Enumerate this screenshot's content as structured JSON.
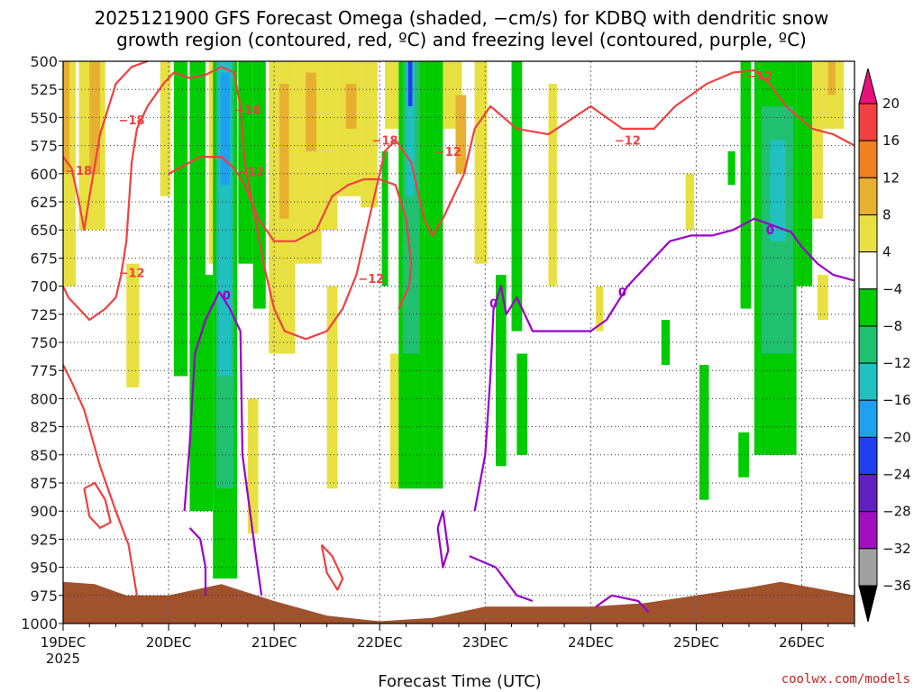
{
  "title_line1": "2025121900 GFS Forecast Omega (shaded, −cm/s) for KDBQ with dendritic snow",
  "title_line2": "growth region (contoured, red, ºC) and freezing level (contoured, purple, ºC)",
  "x_axis_title": "Forecast Time (UTC)",
  "credit": "coolwx.com/models",
  "chart_data": {
    "type": "heatmap",
    "title": "2025121900 GFS Forecast Omega (shaded, −cm/s) for KDBQ with dendritic snow growth region (contoured, red, ºC) and freezing level (contoured, purple, ºC)",
    "xlabel": "Forecast Time (UTC)",
    "ylabel": "",
    "y_levels": [
      "500",
      "525",
      "550",
      "575",
      "600",
      "625",
      "650",
      "675",
      "700",
      "725",
      "750",
      "775",
      "800",
      "825",
      "850",
      "875",
      "900",
      "925",
      "950",
      "975",
      "1000"
    ],
    "ylim": [
      1000,
      500
    ],
    "x_days": [
      {
        "label": "19DEC",
        "sub": "2025",
        "day": 0
      },
      {
        "label": "20DEC",
        "sub": "",
        "day": 1
      },
      {
        "label": "21DEC",
        "sub": "",
        "day": 2
      },
      {
        "label": "22DEC",
        "sub": "",
        "day": 3
      },
      {
        "label": "23DEC",
        "sub": "",
        "day": 4
      },
      {
        "label": "24DEC",
        "sub": "",
        "day": 5
      },
      {
        "label": "25DEC",
        "sub": "",
        "day": 6
      },
      {
        "label": "26DEC",
        "sub": "",
        "day": 7
      }
    ],
    "xlim_days": [
      0,
      7.5
    ],
    "grid": true,
    "colorbar": {
      "ticks": [
        "20",
        "16",
        "12",
        "8",
        "4",
        "−4",
        "−8",
        "−12",
        "−16",
        "−20",
        "−24",
        "−28",
        "−32",
        "−36"
      ],
      "colors": [
        "#e8117a",
        "#f04040",
        "#f08020",
        "#e8b030",
        "#e8e040",
        "#ffffff",
        "#00cc00",
        "#20c070",
        "#20c0c0",
        "#20a0f0",
        "#2040f0",
        "#6020c0",
        "#a010c0",
        "#a0a0a0",
        "#000000"
      ]
    },
    "omega_colors": {
      "pos4": "#e8e040",
      "pos8": "#e8b030",
      "pos12": "#f08020",
      "neg4": "#00cc00",
      "neg8": "#20c070",
      "neg12": "#20c0c0",
      "neg16": "#20a0f0",
      "neg20": "#2040f0",
      "ground": "#a0522d"
    },
    "omega_shading": [
      {
        "d0": 0.0,
        "d1": 0.12,
        "p0": 500,
        "p1": 700,
        "c": "pos4"
      },
      {
        "d0": 0.0,
        "d1": 0.06,
        "p0": 500,
        "p1": 600,
        "c": "pos8"
      },
      {
        "d0": 0.15,
        "d1": 0.4,
        "p0": 500,
        "p1": 650,
        "c": "pos4"
      },
      {
        "d0": 0.25,
        "d1": 0.35,
        "p0": 500,
        "p1": 600,
        "c": "pos8"
      },
      {
        "d0": 0.6,
        "d1": 0.72,
        "p0": 680,
        "p1": 790,
        "c": "pos4"
      },
      {
        "d0": 0.92,
        "d1": 1.02,
        "p0": 500,
        "p1": 620,
        "c": "pos4"
      },
      {
        "d0": 1.05,
        "d1": 1.18,
        "p0": 500,
        "p1": 780,
        "c": "neg4"
      },
      {
        "d0": 1.2,
        "d1": 1.35,
        "p0": 500,
        "p1": 900,
        "c": "neg4"
      },
      {
        "d0": 1.38,
        "d1": 1.5,
        "p0": 500,
        "p1": 680,
        "c": "pos4"
      },
      {
        "d0": 1.3,
        "d1": 1.42,
        "p0": 690,
        "p1": 900,
        "c": "neg4"
      },
      {
        "d0": 1.42,
        "d1": 1.65,
        "p0": 500,
        "p1": 960,
        "c": "neg4"
      },
      {
        "d0": 1.45,
        "d1": 1.62,
        "p0": 500,
        "p1": 880,
        "c": "neg8"
      },
      {
        "d0": 1.47,
        "d1": 1.6,
        "p0": 500,
        "p1": 780,
        "c": "neg12"
      },
      {
        "d0": 1.49,
        "d1": 1.58,
        "p0": 510,
        "p1": 610,
        "c": "neg16"
      },
      {
        "d0": 1.66,
        "d1": 1.8,
        "p0": 500,
        "p1": 680,
        "c": "neg4"
      },
      {
        "d0": 1.8,
        "d1": 1.92,
        "p0": 500,
        "p1": 720,
        "c": "neg4"
      },
      {
        "d0": 1.75,
        "d1": 1.85,
        "p0": 800,
        "p1": 920,
        "c": "pos4"
      },
      {
        "d0": 1.95,
        "d1": 2.2,
        "p0": 500,
        "p1": 760,
        "c": "pos4"
      },
      {
        "d0": 2.05,
        "d1": 2.14,
        "p0": 520,
        "p1": 640,
        "c": "pos8"
      },
      {
        "d0": 2.2,
        "d1": 2.45,
        "p0": 500,
        "p1": 680,
        "c": "pos4"
      },
      {
        "d0": 2.3,
        "d1": 2.4,
        "p0": 510,
        "p1": 580,
        "c": "pos8"
      },
      {
        "d0": 2.45,
        "d1": 2.6,
        "p0": 500,
        "p1": 650,
        "c": "pos4"
      },
      {
        "d0": 2.5,
        "d1": 2.6,
        "p0": 700,
        "p1": 880,
        "c": "pos4"
      },
      {
        "d0": 2.6,
        "d1": 2.82,
        "p0": 500,
        "p1": 620,
        "c": "pos4"
      },
      {
        "d0": 2.68,
        "d1": 2.78,
        "p0": 520,
        "p1": 560,
        "c": "pos8"
      },
      {
        "d0": 2.82,
        "d1": 2.98,
        "p0": 500,
        "p1": 630,
        "c": "pos4"
      },
      {
        "d0": 3.02,
        "d1": 3.08,
        "p0": 580,
        "p1": 700,
        "c": "neg4"
      },
      {
        "d0": 3.05,
        "d1": 3.18,
        "p0": 500,
        "p1": 560,
        "c": "pos4"
      },
      {
        "d0": 3.1,
        "d1": 3.2,
        "p0": 760,
        "p1": 880,
        "c": "pos4"
      },
      {
        "d0": 3.18,
        "d1": 3.42,
        "p0": 500,
        "p1": 880,
        "c": "neg4"
      },
      {
        "d0": 3.22,
        "d1": 3.38,
        "p0": 500,
        "p1": 760,
        "c": "neg8"
      },
      {
        "d0": 3.25,
        "d1": 3.33,
        "p0": 500,
        "p1": 620,
        "c": "neg12"
      },
      {
        "d0": 3.27,
        "d1": 3.31,
        "p0": 500,
        "p1": 540,
        "c": "neg20"
      },
      {
        "d0": 3.42,
        "d1": 3.6,
        "p0": 500,
        "p1": 880,
        "c": "neg4"
      },
      {
        "d0": 3.6,
        "d1": 3.78,
        "p0": 500,
        "p1": 560,
        "c": "pos4"
      },
      {
        "d0": 3.72,
        "d1": 3.82,
        "p0": 530,
        "p1": 600,
        "c": "pos8"
      },
      {
        "d0": 3.9,
        "d1": 4.02,
        "p0": 500,
        "p1": 680,
        "c": "pos4"
      },
      {
        "d0": 4.1,
        "d1": 4.2,
        "p0": 690,
        "p1": 860,
        "c": "neg4"
      },
      {
        "d0": 4.25,
        "d1": 4.35,
        "p0": 500,
        "p1": 740,
        "c": "neg4"
      },
      {
        "d0": 4.3,
        "d1": 4.4,
        "p0": 760,
        "p1": 850,
        "c": "neg4"
      },
      {
        "d0": 4.6,
        "d1": 4.68,
        "p0": 520,
        "p1": 700,
        "c": "pos4"
      },
      {
        "d0": 5.05,
        "d1": 5.12,
        "p0": 700,
        "p1": 740,
        "c": "pos4"
      },
      {
        "d0": 5.67,
        "d1": 5.75,
        "p0": 730,
        "p1": 770,
        "c": "neg4"
      },
      {
        "d0": 5.9,
        "d1": 5.98,
        "p0": 600,
        "p1": 650,
        "c": "pos4"
      },
      {
        "d0": 6.03,
        "d1": 6.12,
        "p0": 770,
        "p1": 890,
        "c": "neg4"
      },
      {
        "d0": 6.3,
        "d1": 6.37,
        "p0": 580,
        "p1": 610,
        "c": "neg4"
      },
      {
        "d0": 6.4,
        "d1": 6.5,
        "p0": 830,
        "p1": 870,
        "c": "neg4"
      },
      {
        "d0": 6.42,
        "d1": 6.52,
        "p0": 500,
        "p1": 720,
        "c": "neg4"
      },
      {
        "d0": 6.55,
        "d1": 6.95,
        "p0": 500,
        "p1": 850,
        "c": "neg4"
      },
      {
        "d0": 6.62,
        "d1": 6.92,
        "p0": 540,
        "p1": 760,
        "c": "neg8"
      },
      {
        "d0": 6.7,
        "d1": 6.85,
        "p0": 570,
        "p1": 660,
        "c": "neg12"
      },
      {
        "d0": 6.95,
        "d1": 7.1,
        "p0": 500,
        "p1": 700,
        "c": "neg4"
      },
      {
        "d0": 7.1,
        "d1": 7.2,
        "p0": 500,
        "p1": 640,
        "c": "pos4"
      },
      {
        "d0": 7.15,
        "d1": 7.25,
        "p0": 690,
        "p1": 730,
        "c": "pos4"
      },
      {
        "d0": 7.2,
        "d1": 7.4,
        "p0": 500,
        "p1": 560,
        "c": "pos4"
      },
      {
        "d0": 7.25,
        "d1": 7.32,
        "p0": 500,
        "p1": 530,
        "c": "pos8"
      }
    ],
    "snow_growth_region": {
      "color": "#f04040",
      "lines": [
        [
          [
            0,
            585
          ],
          [
            0.08,
            595
          ],
          [
            0.15,
            625
          ],
          [
            0.2,
            650
          ],
          [
            0.25,
            620
          ],
          [
            0.35,
            565
          ],
          [
            0.5,
            520
          ],
          [
            0.65,
            505
          ],
          [
            0.8,
            500
          ]
        ],
        [
          [
            0,
            700
          ],
          [
            0.05,
            710
          ],
          [
            0.15,
            720
          ],
          [
            0.25,
            730
          ],
          [
            0.4,
            720
          ],
          [
            0.5,
            710
          ],
          [
            0.55,
            690
          ],
          [
            0.6,
            660
          ],
          [
            0.65,
            590
          ],
          [
            0.7,
            560
          ],
          [
            0.8,
            540
          ],
          [
            0.95,
            520
          ],
          [
            1.05,
            510
          ],
          [
            1.2,
            515
          ],
          [
            1.35,
            512
          ],
          [
            1.5,
            505
          ],
          [
            1.62,
            510
          ],
          [
            1.68,
            540
          ],
          [
            1.72,
            590
          ],
          [
            1.8,
            630
          ],
          [
            1.9,
            680
          ],
          [
            2.0,
            720
          ],
          [
            2.1,
            740
          ],
          [
            2.3,
            747
          ],
          [
            2.5,
            740
          ],
          [
            2.65,
            720
          ],
          [
            2.78,
            690
          ],
          [
            2.9,
            640
          ],
          [
            3.0,
            600
          ],
          [
            3.05,
            580
          ],
          [
            3.15,
            570
          ],
          [
            3.3,
            590
          ],
          [
            3.42,
            640
          ],
          [
            3.5,
            655
          ],
          [
            3.6,
            640
          ],
          [
            3.8,
            600
          ],
          [
            3.9,
            560
          ],
          [
            4.05,
            540
          ],
          [
            4.3,
            560
          ],
          [
            4.6,
            565
          ],
          [
            5.0,
            540
          ],
          [
            5.3,
            560
          ],
          [
            5.6,
            560
          ],
          [
            5.8,
            540
          ],
          [
            6.1,
            520
          ],
          [
            6.35,
            510
          ],
          [
            6.55,
            508
          ],
          [
            6.7,
            520
          ],
          [
            6.85,
            540
          ],
          [
            7.1,
            560
          ],
          [
            7.3,
            565
          ],
          [
            7.5,
            575
          ]
        ],
        [
          [
            1.0,
            600
          ],
          [
            1.1,
            595
          ],
          [
            1.3,
            585
          ],
          [
            1.5,
            585
          ],
          [
            1.62,
            595
          ],
          [
            1.72,
            610
          ],
          [
            1.85,
            640
          ],
          [
            2.0,
            660
          ],
          [
            2.2,
            660
          ],
          [
            2.4,
            650
          ],
          [
            2.55,
            620
          ],
          [
            2.7,
            610
          ],
          [
            2.85,
            605
          ],
          [
            3.0,
            605
          ],
          [
            3.15,
            610
          ],
          [
            3.25,
            640
          ],
          [
            3.3,
            680
          ],
          [
            3.28,
            700
          ],
          [
            3.18,
            720
          ]
        ],
        [
          [
            0,
            770
          ],
          [
            0.08,
            785
          ],
          [
            0.2,
            810
          ],
          [
            0.35,
            860
          ],
          [
            0.5,
            900
          ],
          [
            0.62,
            930
          ],
          [
            0.7,
            975
          ]
        ],
        [
          [
            0.2,
            880
          ],
          [
            0.3,
            875
          ],
          [
            0.4,
            890
          ],
          [
            0.45,
            910
          ],
          [
            0.35,
            915
          ],
          [
            0.25,
            905
          ],
          [
            0.2,
            880
          ]
        ],
        [
          [
            2.45,
            930
          ],
          [
            2.55,
            940
          ],
          [
            2.65,
            960
          ],
          [
            2.6,
            970
          ],
          [
            2.5,
            955
          ],
          [
            2.45,
            930
          ]
        ]
      ],
      "labels": [
        {
          "text": "−18",
          "d": 0.15,
          "p": 597
        },
        {
          "text": "−18",
          "d": 0.65,
          "p": 552
        },
        {
          "text": "−12",
          "d": 0.65,
          "p": 688
        },
        {
          "text": "−18",
          "d": 1.75,
          "p": 543
        },
        {
          "text": "−12",
          "d": 1.78,
          "p": 598
        },
        {
          "text": "−18",
          "d": 3.05,
          "p": 570
        },
        {
          "text": "−12",
          "d": 2.92,
          "p": 693
        },
        {
          "text": "−12",
          "d": 3.65,
          "p": 580
        },
        {
          "text": "−12",
          "d": 5.35,
          "p": 570
        },
        {
          "text": "−12",
          "d": 6.6,
          "p": 513
        }
      ]
    },
    "freezing_level": {
      "color": "#9900cc",
      "lines": [
        [
          [
            1.15,
            900
          ],
          [
            1.2,
            840
          ],
          [
            1.25,
            760
          ],
          [
            1.35,
            730
          ],
          [
            1.48,
            705
          ],
          [
            1.58,
            720
          ],
          [
            1.68,
            740
          ],
          [
            1.7,
            850
          ],
          [
            1.82,
            935
          ],
          [
            1.88,
            975
          ]
        ],
        [
          [
            1.2,
            915
          ],
          [
            1.3,
            925
          ],
          [
            1.35,
            950
          ],
          [
            1.35,
            975
          ]
        ],
        [
          [
            3.9,
            900
          ],
          [
            4.0,
            850
          ],
          [
            4.05,
            780
          ],
          [
            4.08,
            720
          ],
          [
            4.15,
            700
          ],
          [
            4.2,
            725
          ],
          [
            4.3,
            710
          ],
          [
            4.45,
            740
          ],
          [
            4.65,
            740
          ],
          [
            4.8,
            740
          ],
          [
            5.0,
            740
          ],
          [
            5.15,
            730
          ],
          [
            5.35,
            700
          ],
          [
            5.55,
            680
          ],
          [
            5.75,
            660
          ],
          [
            5.95,
            655
          ],
          [
            6.15,
            655
          ],
          [
            6.35,
            650
          ],
          [
            6.55,
            640
          ],
          [
            6.7,
            645
          ],
          [
            6.9,
            652
          ],
          [
            7.0,
            665
          ],
          [
            7.15,
            680
          ],
          [
            7.3,
            690
          ],
          [
            7.5,
            695
          ]
        ],
        [
          [
            3.85,
            940
          ],
          [
            4.1,
            950
          ],
          [
            4.3,
            975
          ],
          [
            4.45,
            980
          ]
        ],
        [
          [
            3.55,
            915
          ],
          [
            3.6,
            900
          ],
          [
            3.65,
            935
          ],
          [
            3.6,
            950
          ],
          [
            3.55,
            915
          ]
        ],
        [
          [
            5.05,
            985
          ],
          [
            5.2,
            975
          ],
          [
            5.45,
            980
          ],
          [
            5.55,
            990
          ]
        ]
      ],
      "labels": [
        {
          "text": "0",
          "d": 1.55,
          "p": 708
        },
        {
          "text": "0",
          "d": 4.08,
          "p": 715
        },
        {
          "text": "0",
          "d": 5.3,
          "p": 705
        },
        {
          "text": "0",
          "d": 6.7,
          "p": 650
        }
      ]
    }
  }
}
